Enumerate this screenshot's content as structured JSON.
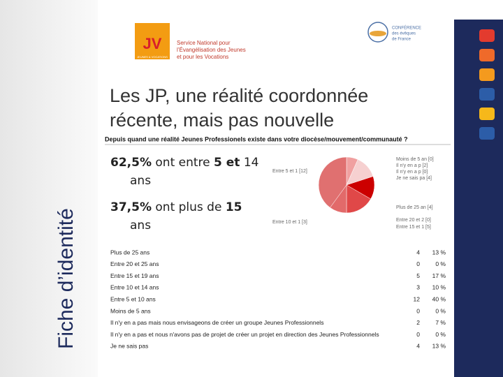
{
  "sidebar_title": "Fiche d’identité",
  "logo": {
    "acronym": "JV",
    "caption": "JEUNES & VOCATIONS",
    "lines": [
      "Service National pour",
      "l’Évangélisation des Jeunes",
      "et pour les Vocations"
    ]
  },
  "conference_logo": {
    "lines": [
      "CONFÉRENCE",
      "des évêques",
      "de France"
    ]
  },
  "title": [
    "Les JP, une réalité coordonnée",
    "récente, mais pas nouvelle"
  ],
  "bullets": [
    [
      {
        "text": "62,5%",
        "bold": true
      },
      {
        "text": " ont entre ",
        "bold": false
      },
      {
        "text": "5 et",
        "bold": true
      },
      {
        "text": " 14 ans",
        "bold": false
      }
    ],
    [
      {
        "text": "37,5%",
        "bold": true
      },
      {
        "text": " ont plus de ",
        "bold": false
      },
      {
        "text": "15",
        "bold": true
      },
      {
        "text": " ans",
        "bold": false
      }
    ]
  ],
  "survey": {
    "question": "Depuis quand une réalité Jeunes Professionels existe dans votre diocèse/mouvement/communauté ?",
    "pie": {
      "labels": [
        "Moins de 5 an [0]",
        "Il n'y en a p [2]",
        "Il n'y en a p [0]",
        "Je ne sais pa [4]",
        "Plus de 25 an [4]",
        "Entre 20 et 2 [0]",
        "Entre 15 et 1 [5]",
        "Entre 10 et 1 [3]",
        "Entre 5 et 1 [12]"
      ],
      "values": [
        0,
        2,
        0,
        4,
        4,
        0,
        5,
        3,
        12
      ],
      "colors": [
        "#f4c6c6",
        "#f0a0a0",
        "#f8dada",
        "#f6d0d0",
        "#cc0000",
        "#d83030",
        "#e04848",
        "#e26a6a",
        "#e07070"
      ]
    },
    "table": {
      "rows": [
        [
          "Plus de 25 ans",
          "4",
          "13 %"
        ],
        [
          "Entre 20 et 25 ans",
          "0",
          "0 %"
        ],
        [
          "Entre 15 et 19 ans",
          "5",
          "17 %"
        ],
        [
          "Entre 10 et 14 ans",
          "3",
          "10 %"
        ],
        [
          "Entre 5 et 10 ans",
          "12",
          "40 %"
        ],
        [
          "Moins de 5 ans",
          "0",
          "0 %"
        ],
        [
          "Il n'y en a pas mais nous envisageons de créer un groupe Jeunes Professionnels",
          "2",
          "7 %"
        ],
        [
          "Il n'y en a pas et nous n'avons pas de projet de créer un projet en direction des Jeunes Professionnels",
          "0",
          "0 %"
        ],
        [
          "Je ne sais pas",
          "4",
          "13 %"
        ]
      ]
    }
  }
}
